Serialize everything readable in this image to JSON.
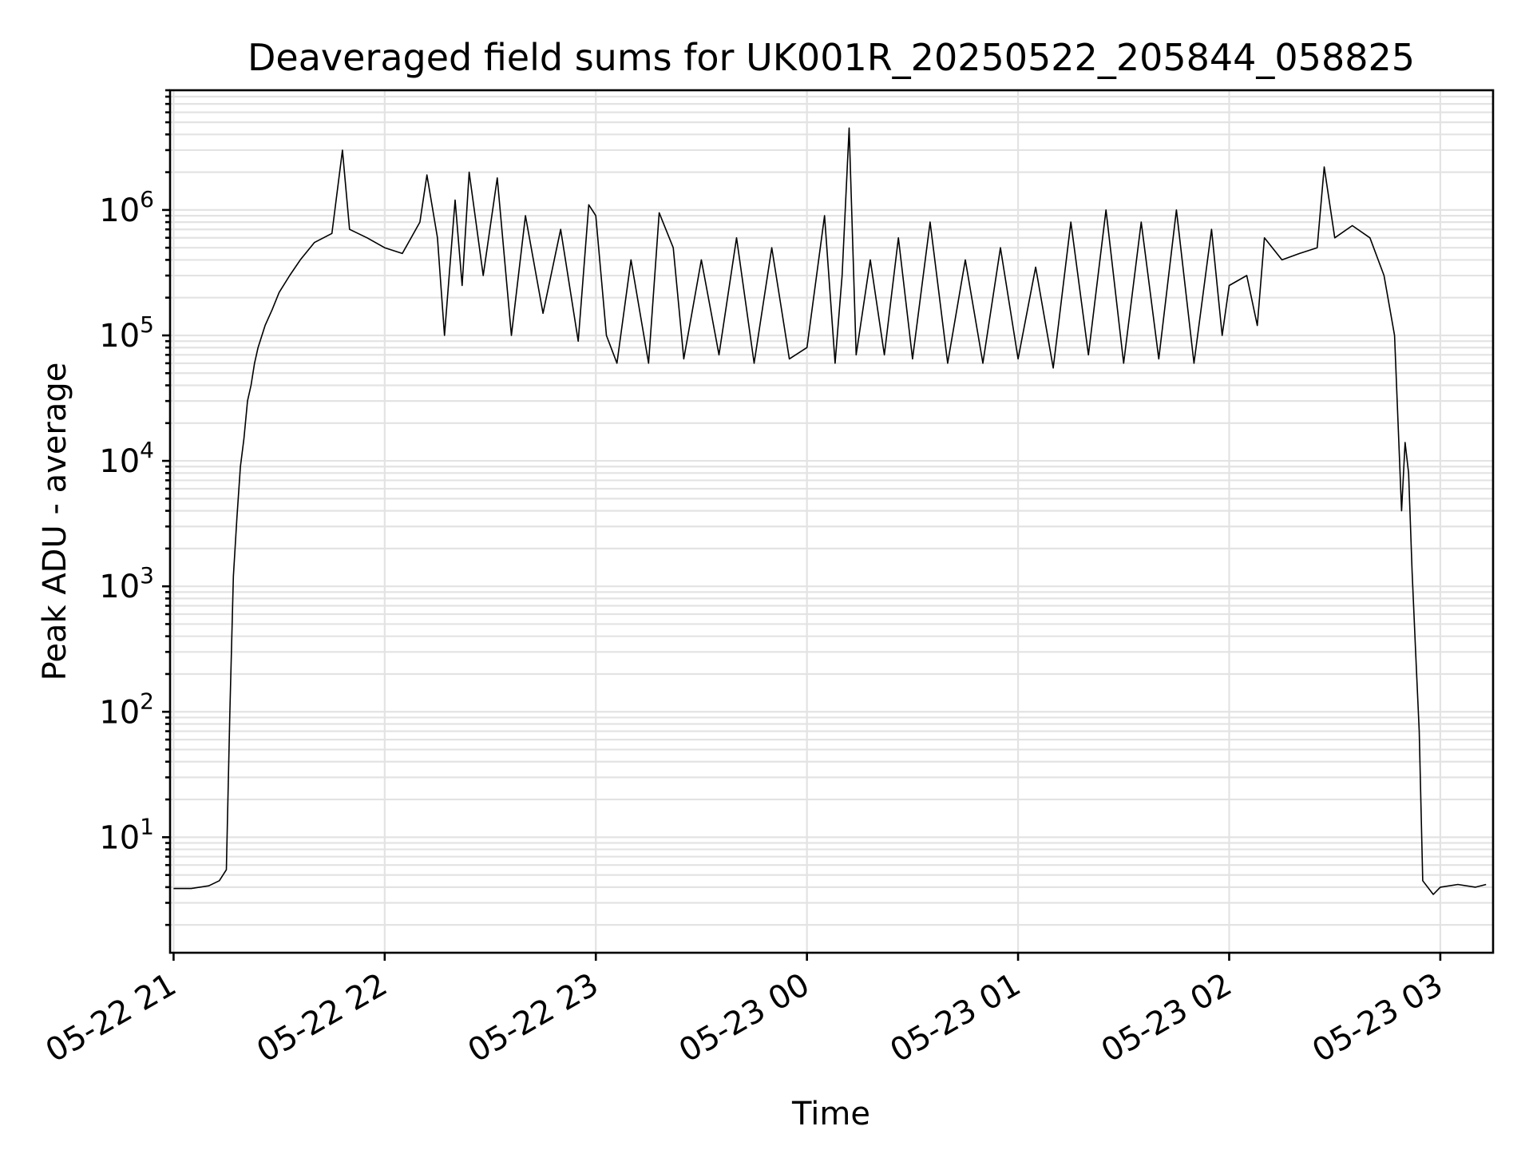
{
  "chart_data": {
    "type": "line",
    "title": "Deaveraged field sums for UK001R_20250522_205844_058825",
    "xlabel": "Time",
    "ylabel": "Peak ADU - average",
    "yscale": "log",
    "xlim": [
      "2025-05-22 20:59",
      "2025-05-23 03:15"
    ],
    "ylim": [
      1.2,
      9000000
    ],
    "x_ticks": [
      "2025-05-22 21:00",
      "2025-05-22 22:00",
      "2025-05-22 23:00",
      "2025-05-23 00:00",
      "2025-05-23 01:00",
      "2025-05-23 02:00",
      "2025-05-23 03:00"
    ],
    "x_tick_labels": [
      "05-22 21",
      "05-22 22",
      "05-22 23",
      "05-23 00",
      "05-23 01",
      "05-23 02",
      "05-23 03"
    ],
    "y_tick_exponents": [
      "1",
      "2",
      "3",
      "4",
      "5",
      "6"
    ],
    "y_tick_base": "10",
    "grid": true,
    "legend": "none",
    "series": [
      {
        "color": "#000000",
        "points": [
          [
            "2025-05-22 21:00",
            3.9
          ],
          [
            "2025-05-22 21:05",
            3.9
          ],
          [
            "2025-05-22 21:10",
            4.1
          ],
          [
            "2025-05-22 21:13",
            4.5
          ],
          [
            "2025-05-22 21:15",
            5.5
          ],
          [
            "2025-05-22 21:16",
            100
          ],
          [
            "2025-05-22 21:17",
            1200
          ],
          [
            "2025-05-22 21:18",
            3500
          ],
          [
            "2025-05-22 21:19",
            9000
          ],
          [
            "2025-05-22 21:20",
            15000
          ],
          [
            "2025-05-22 21:21",
            30000
          ],
          [
            "2025-05-22 21:22",
            40000
          ],
          [
            "2025-05-22 21:23",
            60000
          ],
          [
            "2025-05-22 21:24",
            80000
          ],
          [
            "2025-05-22 21:26",
            120000
          ],
          [
            "2025-05-22 21:28",
            160000
          ],
          [
            "2025-05-22 21:30",
            220000
          ],
          [
            "2025-05-22 21:33",
            300000
          ],
          [
            "2025-05-22 21:36",
            400000
          ],
          [
            "2025-05-22 21:40",
            550000
          ],
          [
            "2025-05-22 21:45",
            650000
          ],
          [
            "2025-05-22 21:48",
            3000000
          ],
          [
            "2025-05-22 21:50",
            700000
          ],
          [
            "2025-05-22 21:55",
            600000
          ],
          [
            "2025-05-22 22:00",
            500000
          ],
          [
            "2025-05-22 22:05",
            450000
          ],
          [
            "2025-05-22 22:10",
            800000
          ],
          [
            "2025-05-22 22:12",
            1900000
          ],
          [
            "2025-05-22 22:15",
            600000
          ],
          [
            "2025-05-22 22:17",
            100000
          ],
          [
            "2025-05-22 22:20",
            1200000
          ],
          [
            "2025-05-22 22:22",
            250000
          ],
          [
            "2025-05-22 22:24",
            2000000
          ],
          [
            "2025-05-22 22:28",
            300000
          ],
          [
            "2025-05-22 22:32",
            1800000
          ],
          [
            "2025-05-22 22:36",
            100000
          ],
          [
            "2025-05-22 22:40",
            900000
          ],
          [
            "2025-05-22 22:45",
            150000
          ],
          [
            "2025-05-22 22:50",
            700000
          ],
          [
            "2025-05-22 22:55",
            90000
          ],
          [
            "2025-05-22 22:58",
            1100000
          ],
          [
            "2025-05-22 23:00",
            900000
          ],
          [
            "2025-05-22 23:03",
            100000
          ],
          [
            "2025-05-22 23:06",
            60000
          ],
          [
            "2025-05-22 23:10",
            400000
          ],
          [
            "2025-05-22 23:15",
            60000
          ],
          [
            "2025-05-22 23:18",
            950000
          ],
          [
            "2025-05-22 23:22",
            500000
          ],
          [
            "2025-05-22 23:25",
            65000
          ],
          [
            "2025-05-22 23:30",
            400000
          ],
          [
            "2025-05-22 23:35",
            70000
          ],
          [
            "2025-05-22 23:40",
            600000
          ],
          [
            "2025-05-22 23:45",
            60000
          ],
          [
            "2025-05-22 23:50",
            500000
          ],
          [
            "2025-05-22 23:55",
            65000
          ],
          [
            "2025-05-23 00:00",
            80000
          ],
          [
            "2025-05-23 00:05",
            900000
          ],
          [
            "2025-05-23 00:08",
            60000
          ],
          [
            "2025-05-23 00:10",
            300000
          ],
          [
            "2025-05-23 00:12",
            4500000
          ],
          [
            "2025-05-23 00:14",
            70000
          ],
          [
            "2025-05-23 00:18",
            400000
          ],
          [
            "2025-05-23 00:22",
            70000
          ],
          [
            "2025-05-23 00:26",
            600000
          ],
          [
            "2025-05-23 00:30",
            65000
          ],
          [
            "2025-05-23 00:35",
            800000
          ],
          [
            "2025-05-23 00:40",
            60000
          ],
          [
            "2025-05-23 00:45",
            400000
          ],
          [
            "2025-05-23 00:50",
            60000
          ],
          [
            "2025-05-23 00:55",
            500000
          ],
          [
            "2025-05-23 01:00",
            65000
          ],
          [
            "2025-05-23 01:05",
            350000
          ],
          [
            "2025-05-23 01:10",
            55000
          ],
          [
            "2025-05-23 01:15",
            800000
          ],
          [
            "2025-05-23 01:20",
            70000
          ],
          [
            "2025-05-23 01:25",
            1000000
          ],
          [
            "2025-05-23 01:30",
            60000
          ],
          [
            "2025-05-23 01:35",
            800000
          ],
          [
            "2025-05-23 01:40",
            65000
          ],
          [
            "2025-05-23 01:45",
            1000000
          ],
          [
            "2025-05-23 01:50",
            60000
          ],
          [
            "2025-05-23 01:55",
            700000
          ],
          [
            "2025-05-23 01:58",
            100000
          ],
          [
            "2025-05-23 02:00",
            250000
          ],
          [
            "2025-05-23 02:05",
            300000
          ],
          [
            "2025-05-23 02:08",
            120000
          ],
          [
            "2025-05-23 02:10",
            600000
          ],
          [
            "2025-05-23 02:15",
            400000
          ],
          [
            "2025-05-23 02:20",
            450000
          ],
          [
            "2025-05-23 02:25",
            500000
          ],
          [
            "2025-05-23 02:27",
            2200000
          ],
          [
            "2025-05-23 02:30",
            600000
          ],
          [
            "2025-05-23 02:35",
            750000
          ],
          [
            "2025-05-23 02:40",
            600000
          ],
          [
            "2025-05-23 02:44",
            300000
          ],
          [
            "2025-05-23 02:47",
            100000
          ],
          [
            "2025-05-23 02:48",
            20000
          ],
          [
            "2025-05-23 02:49",
            4000
          ],
          [
            "2025-05-23 02:50",
            14000
          ],
          [
            "2025-05-23 02:51",
            8000
          ],
          [
            "2025-05-23 02:52",
            1300
          ],
          [
            "2025-05-23 02:53",
            300
          ],
          [
            "2025-05-23 02:54",
            70
          ],
          [
            "2025-05-23 02:55",
            4.5
          ],
          [
            "2025-05-23 02:58",
            3.5
          ],
          [
            "2025-05-23 03:00",
            4.0
          ],
          [
            "2025-05-23 03:05",
            4.2
          ],
          [
            "2025-05-23 03:10",
            4.0
          ],
          [
            "2025-05-23 03:13",
            4.2
          ]
        ]
      }
    ]
  }
}
